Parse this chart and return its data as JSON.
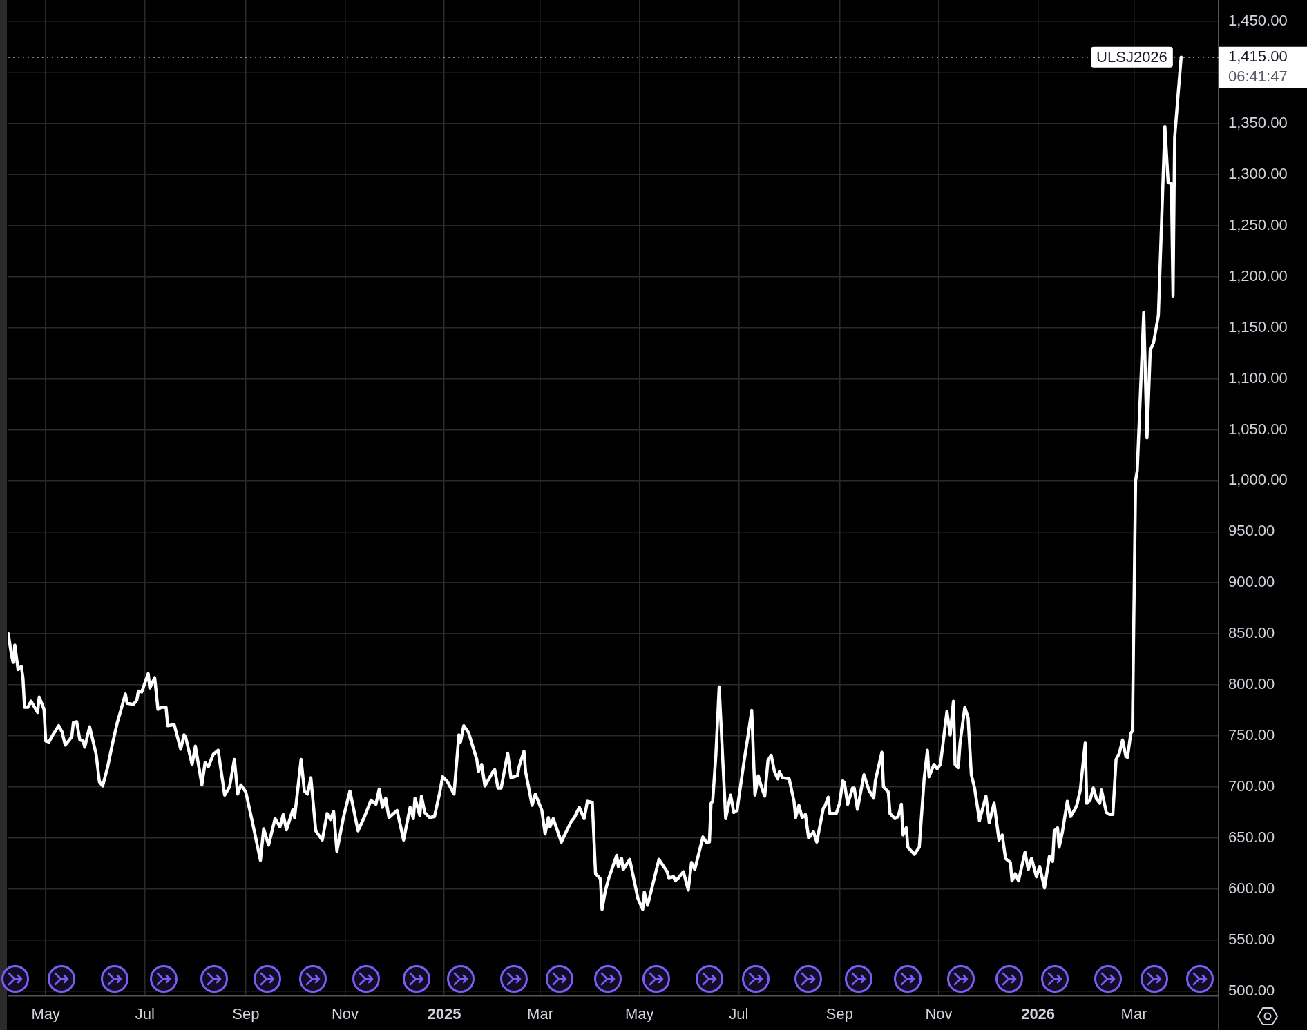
{
  "chart_data": {
    "type": "line",
    "x": [
      "2024-04-08",
      "2024-04-10",
      "2024-04-11",
      "2024-04-12",
      "2024-04-14",
      "2024-04-16",
      "2024-04-17",
      "2024-04-18",
      "2024-04-20",
      "2024-04-22",
      "2024-04-26",
      "2024-04-27",
      "2024-04-30",
      "2024-05-01",
      "2024-05-03",
      "2024-05-05",
      "2024-05-09",
      "2024-05-11",
      "2024-05-13",
      "2024-05-17",
      "2024-05-18",
      "2024-05-20",
      "2024-05-22",
      "2024-05-24",
      "2024-05-25",
      "2024-05-28",
      "2024-06-01",
      "2024-06-03",
      "2024-06-05",
      "2024-06-08",
      "2024-06-11",
      "2024-06-14",
      "2024-06-19",
      "2024-06-20",
      "2024-06-24",
      "2024-06-26",
      "2024-06-27",
      "2024-06-29",
      "2024-07-03",
      "2024-07-04",
      "2024-07-07",
      "2024-07-09",
      "2024-07-11",
      "2024-07-14",
      "2024-07-15",
      "2024-07-19",
      "2024-07-23",
      "2024-07-25",
      "2024-07-26",
      "2024-07-30",
      "2024-08-01",
      "2024-08-05",
      "2024-08-07",
      "2024-08-09",
      "2024-08-12",
      "2024-08-15",
      "2024-08-19",
      "2024-08-22",
      "2024-08-25",
      "2024-08-27",
      "2024-08-29",
      "2024-09-01",
      "2024-09-05",
      "2024-09-10",
      "2024-09-12",
      "2024-09-15",
      "2024-09-19",
      "2024-09-22",
      "2024-09-24",
      "2024-09-26",
      "2024-09-30",
      "2024-10-01",
      "2024-10-05",
      "2024-10-07",
      "2024-10-09",
      "2024-10-11",
      "2024-10-14",
      "2024-10-18",
      "2024-10-21",
      "2024-10-23",
      "2024-10-25",
      "2024-10-27",
      "2024-10-31",
      "2024-11-04",
      "2024-11-09",
      "2024-11-13",
      "2024-11-17",
      "2024-11-20",
      "2024-11-22",
      "2024-11-24",
      "2024-11-26",
      "2024-11-28",
      "2024-12-03",
      "2024-12-07",
      "2024-12-11",
      "2024-12-13",
      "2024-12-14",
      "2024-12-17",
      "2024-12-18",
      "2024-12-20",
      "2024-12-23",
      "2024-12-26",
      "2024-12-29",
      "2024-12-31",
      "2025-01-03",
      "2025-01-07",
      "2025-01-10",
      "2025-01-11",
      "2025-01-13",
      "2025-01-16",
      "2025-01-21",
      "2025-01-22",
      "2025-01-24",
      "2025-01-26",
      "2025-01-31",
      "2025-02-01",
      "2025-02-03",
      "2025-02-05",
      "2025-02-09",
      "2025-02-11",
      "2025-02-15",
      "2025-02-16",
      "2025-02-19",
      "2025-02-20",
      "2025-02-24",
      "2025-02-26",
      "2025-03-02",
      "2025-03-04",
      "2025-03-06",
      "2025-03-07",
      "2025-03-09",
      "2025-03-14",
      "2025-03-16",
      "2025-03-20",
      "2025-03-22",
      "2025-03-25",
      "2025-03-28",
      "2025-03-30",
      "2025-04-02",
      "2025-04-04",
      "2025-04-07",
      "2025-04-08",
      "2025-04-10",
      "2025-04-12",
      "2025-04-17",
      "2025-04-18",
      "2025-04-20",
      "2025-04-21",
      "2025-04-25",
      "2025-04-30",
      "2025-05-03",
      "2025-05-04",
      "2025-05-06",
      "2025-05-13",
      "2025-05-18",
      "2025-05-19",
      "2025-05-22",
      "2025-05-23",
      "2025-05-25",
      "2025-05-28",
      "2025-05-31",
      "2025-06-02",
      "2025-06-04",
      "2025-06-09",
      "2025-06-11",
      "2025-06-13",
      "2025-06-14",
      "2025-06-15",
      "2025-06-17",
      "2025-06-19",
      "2025-06-23",
      "2025-06-26",
      "2025-06-28",
      "2025-06-30",
      "2025-07-04",
      "2025-07-07",
      "2025-07-09",
      "2025-07-11",
      "2025-07-13",
      "2025-07-15",
      "2025-07-17",
      "2025-07-19",
      "2025-07-21",
      "2025-07-23",
      "2025-07-25",
      "2025-07-26",
      "2025-07-28",
      "2025-08-01",
      "2025-08-04",
      "2025-08-05",
      "2025-08-07",
      "2025-08-09",
      "2025-08-11",
      "2025-08-13",
      "2025-08-16",
      "2025-08-18",
      "2025-08-22",
      "2025-08-23",
      "2025-08-25",
      "2025-08-26",
      "2025-08-30",
      "2025-09-01",
      "2025-09-03",
      "2025-09-04",
      "2025-09-06",
      "2025-09-09",
      "2025-09-10",
      "2025-09-12",
      "2025-09-16",
      "2025-09-19",
      "2025-09-22",
      "2025-09-23",
      "2025-09-27",
      "2025-09-28",
      "2025-10-01",
      "2025-10-02",
      "2025-10-05",
      "2025-10-07",
      "2025-10-09",
      "2025-10-10",
      "2025-10-12",
      "2025-10-13",
      "2025-10-17",
      "2025-10-20",
      "2025-10-23",
      "2025-10-25",
      "2025-10-26",
      "2025-10-29",
      "2025-10-31",
      "2025-11-02",
      "2025-11-06",
      "2025-11-08",
      "2025-11-10",
      "2025-11-11",
      "2025-11-13",
      "2025-11-14",
      "2025-11-17",
      "2025-11-19",
      "2025-11-21",
      "2025-11-23",
      "2025-11-26",
      "2025-11-30",
      "2025-12-02",
      "2025-12-05",
      "2025-12-08",
      "2025-12-10",
      "2025-12-12",
      "2025-12-15",
      "2025-12-16",
      "2025-12-18",
      "2025-12-20",
      "2025-12-24",
      "2025-12-26",
      "2025-12-28",
      "2025-12-31",
      "2026-01-02",
      "2026-01-05",
      "2026-01-08",
      "2026-01-10",
      "2026-01-11",
      "2026-01-13",
      "2026-01-14",
      "2026-01-16",
      "2026-01-19",
      "2026-01-21",
      "2026-01-24",
      "2026-01-25",
      "2026-01-27",
      "2026-01-30",
      "2026-01-31",
      "2026-02-02",
      "2026-02-04",
      "2026-02-06",
      "2026-02-08",
      "2026-02-09",
      "2026-02-12",
      "2026-02-14",
      "2026-02-16",
      "2026-02-18",
      "2026-02-20",
      "2026-02-22",
      "2026-02-24",
      "2026-02-25",
      "2026-02-27",
      "2026-02-28",
      "2026-03-02",
      "2026-03-03",
      "2026-03-07",
      "2026-03-09",
      "2026-03-11",
      "2026-03-13",
      "2026-03-16",
      "2026-03-20",
      "2026-03-22",
      "2026-03-24",
      "2026-03-25",
      "2026-03-26",
      "2026-03-28",
      "2026-03-30"
    ],
    "series": [
      {
        "name": "ULSJ2026",
        "color": "#ffffff",
        "values": [
          850,
          829,
          822,
          839,
          815,
          818,
          807,
          778,
          778,
          784,
          773,
          788,
          776,
          745,
          744,
          750,
          760,
          754,
          741,
          749,
          763,
          764,
          746,
          745,
          739,
          759,
          732,
          705,
          701,
          719,
          742,
          763,
          791,
          782,
          781,
          785,
          794,
          793,
          811,
          797,
          807,
          776,
          778,
          778,
          760,
          761,
          737,
          751,
          749,
          722,
          740,
          702,
          724,
          720,
          732,
          736,
          692,
          700,
          727,
          693,
          702,
          695,
          666,
          628,
          659,
          643,
          669,
          661,
          673,
          658,
          678,
          670,
          727,
          696,
          693,
          709,
          657,
          648,
          674,
          668,
          676,
          637,
          670,
          696,
          657,
          671,
          687,
          683,
          698,
          680,
          689,
          670,
          677,
          648,
          680,
          669,
          689,
          672,
          691,
          675,
          670,
          671,
          693,
          710,
          705,
          693,
          751,
          744,
          760,
          753,
          727,
          715,
          722,
          701,
          715,
          717,
          699,
          699,
          733,
          709,
          711,
          720,
          735,
          715,
          682,
          693,
          677,
          654,
          670,
          661,
          669,
          646,
          653,
          666,
          670,
          680,
          669,
          686,
          685,
          615,
          610,
          580,
          598,
          610,
          633,
          622,
          630,
          619,
          629,
          591,
          580,
          597,
          584,
          629,
          617,
          611,
          612,
          608,
          611,
          617,
          599,
          626,
          619,
          651,
          646,
          646,
          684,
          686,
          732,
          798,
          669,
          692,
          675,
          677,
          722,
          753,
          775,
          692,
          711,
          700,
          691,
          726,
          731,
          715,
          708,
          715,
          709,
          708,
          686,
          670,
          682,
          670,
          673,
          650,
          656,
          646,
          679,
          681,
          690,
          674,
          674,
          684,
          706,
          704,
          683,
          699,
          699,
          678,
          712,
          697,
          689,
          706,
          734,
          700,
          695,
          674,
          669,
          671,
          683,
          653,
          660,
          641,
          634,
          641,
          708,
          736,
          710,
          722,
          718,
          722,
          774,
          751,
          784,
          722,
          719,
          742,
          778,
          768,
          712,
          699,
          667,
          691,
          665,
          684,
          648,
          653,
          630,
          626,
          608,
          615,
          608,
          636,
          619,
          630,
          612,
          622,
          601,
          632,
          627,
          657,
          660,
          641,
          656,
          686,
          671,
          679,
          683,
          697,
          743,
          684,
          687,
          699,
          688,
          684,
          697,
          675,
          673,
          673,
          727,
          733,
          746,
          730,
          729,
          752,
          755,
          1000,
          1010,
          1165,
          1042,
          1128,
          1135,
          1162,
          1347,
          1292,
          1291,
          1181,
          1336,
          1376,
          1415
        ]
      }
    ],
    "xlim": [
      "2024-04-08",
      "2026-04-22"
    ],
    "xticks": [
      {
        "value": "2024-05-01",
        "label": "May"
      },
      {
        "value": "2024-07-01",
        "label": "Jul"
      },
      {
        "value": "2024-09-01",
        "label": "Sep"
      },
      {
        "value": "2024-11-01",
        "label": "Nov"
      },
      {
        "value": "2025-01-01",
        "label": "2025"
      },
      {
        "value": "2025-03-01",
        "label": "Mar"
      },
      {
        "value": "2025-05-01",
        "label": "May"
      },
      {
        "value": "2025-07-01",
        "label": "Jul"
      },
      {
        "value": "2025-09-01",
        "label": "Sep"
      },
      {
        "value": "2025-11-01",
        "label": "Nov"
      },
      {
        "value": "2026-01-01",
        "label": "2026"
      },
      {
        "value": "2026-03-01",
        "label": "Mar"
      }
    ],
    "ylim": [
      495,
      1471
    ],
    "yticks": [
      {
        "value": 500,
        "label": "500.00"
      },
      {
        "value": 550,
        "label": "550.00"
      },
      {
        "value": 600,
        "label": "600.00"
      },
      {
        "value": 650,
        "label": "650.00"
      },
      {
        "value": 700,
        "label": "700.00"
      },
      {
        "value": 750,
        "label": "750.00"
      },
      {
        "value": 800,
        "label": "800.00"
      },
      {
        "value": 850,
        "label": "850.00"
      },
      {
        "value": 900,
        "label": "900.00"
      },
      {
        "value": 950,
        "label": "950.00"
      },
      {
        "value": 1000,
        "label": "1,000.00"
      },
      {
        "value": 1050,
        "label": "1,050.00"
      },
      {
        "value": 1100,
        "label": "1,100.00"
      },
      {
        "value": 1150,
        "label": "1,150.00"
      },
      {
        "value": 1200,
        "label": "1,200.00"
      },
      {
        "value": 1250,
        "label": "1,250.00"
      },
      {
        "value": 1300,
        "label": "1,300.00"
      },
      {
        "value": 1350,
        "label": "1,350.00"
      },
      {
        "value": 1400,
        "label": null
      },
      {
        "value": 1450,
        "label": "1,450.00"
      }
    ],
    "grid": true,
    "marker": "none",
    "line_style": "solid",
    "ref_lines": [
      {
        "axis": "y",
        "value": 1415,
        "label": "1,415.00",
        "color": "#ffffff",
        "line_style": "dotted"
      }
    ],
    "annotations": [
      "06:41:47"
    ]
  }
}
